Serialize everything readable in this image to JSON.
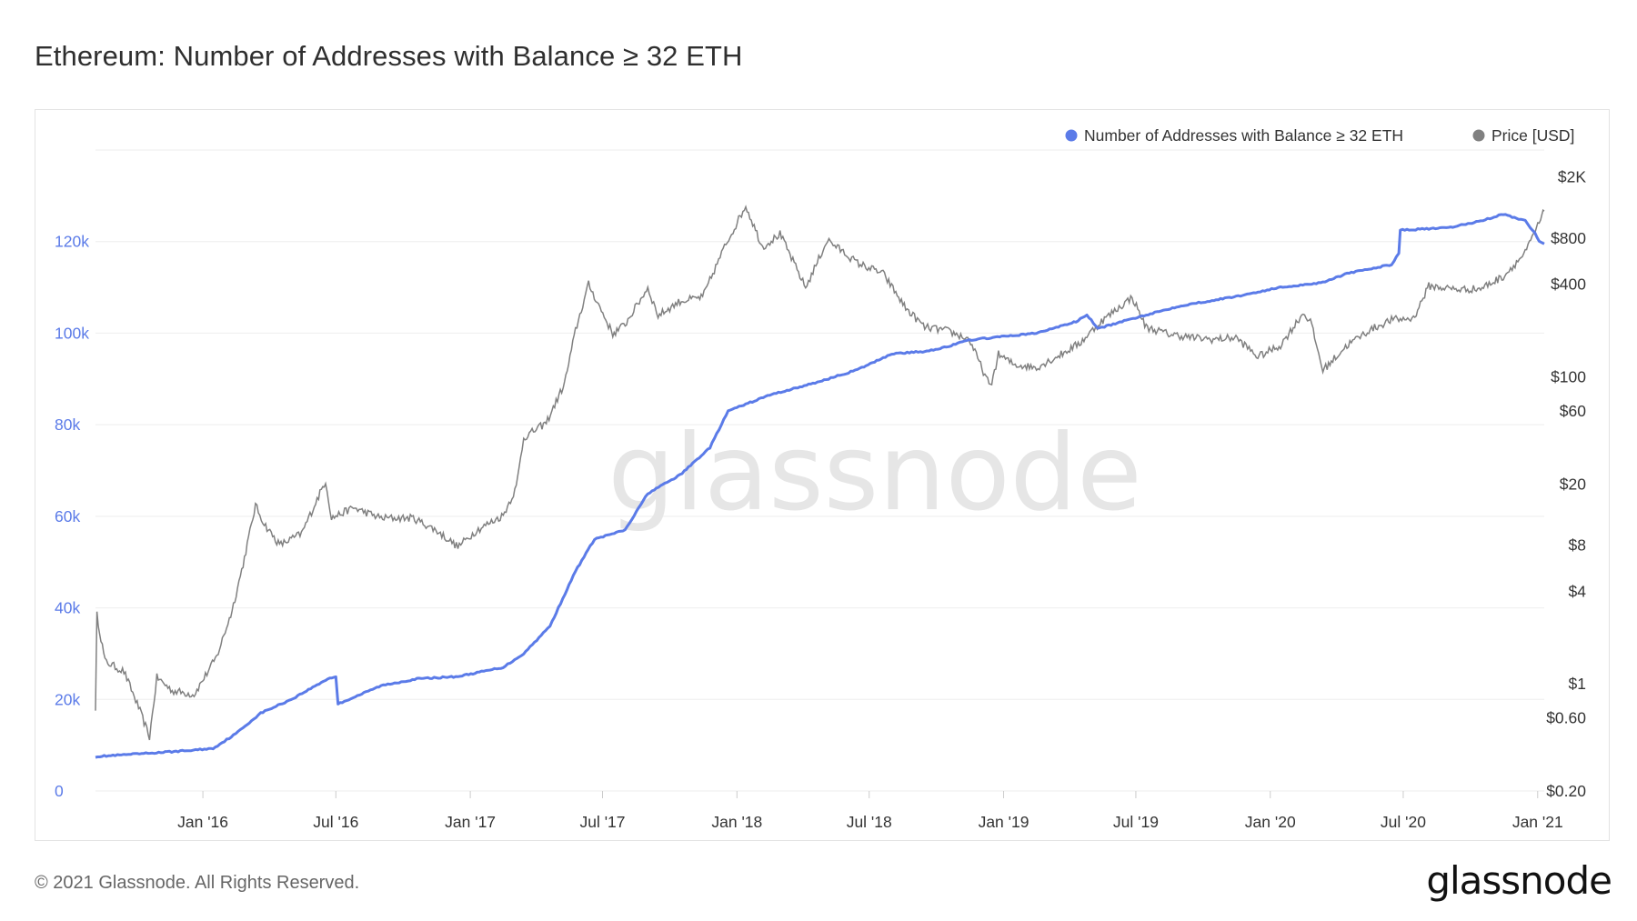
{
  "title": "Ethereum: Number of Addresses with Balance ≥ 32 ETH",
  "footer": {
    "copyright": "© 2021 Glassnode. All Rights Reserved.",
    "brand": "glassnode"
  },
  "watermark": "glassnode",
  "colors": {
    "addresses": "#5b7be8",
    "price": "#808080",
    "grid": "#eeeeee",
    "left_axis_text": "#5b7be8",
    "right_axis_text": "#333333"
  },
  "chart_data": {
    "type": "line",
    "title": "Ethereum: Number of Addresses with Balance ≥ 32 ETH",
    "legend": {
      "placement": "top-right",
      "items": [
        "Number of Addresses with Balance ≥ 32 ETH",
        "Price [USD]"
      ]
    },
    "grid": true,
    "x_ticks": [
      "Jan '16",
      "Jul '16",
      "Jan '17",
      "Jul '17",
      "Jan '18",
      "Jul '18",
      "Jan '19",
      "Jul '19",
      "Jan '20",
      "Jul '20",
      "Jan '21"
    ],
    "x_range": [
      "2015-08-07",
      "2021-01-10"
    ],
    "left_axis": {
      "ticks": [
        "0",
        "20k",
        "40k",
        "60k",
        "80k",
        "100k",
        "120k"
      ],
      "ylim": [
        0,
        140000
      ]
    },
    "right_axis": {
      "scale": "log",
      "ticks": [
        "$0.20",
        "$0.60",
        "$1",
        "$4",
        "$8",
        "$20",
        "$60",
        "$100",
        "$400",
        "$800",
        "$2K"
      ],
      "ylim": [
        0.2,
        3000
      ]
    },
    "series": [
      {
        "name": "Number of Addresses with Balance ≥ 32 ETH",
        "axis": "left",
        "points": [
          [
            "2015-08-07",
            7500
          ],
          [
            "2015-10-15",
            8200
          ],
          [
            "2015-12-10",
            8800
          ],
          [
            "2016-01-15",
            9300
          ],
          [
            "2016-02-15",
            12500
          ],
          [
            "2016-03-20",
            17000
          ],
          [
            "2016-05-01",
            20000
          ],
          [
            "2016-06-20",
            24500
          ],
          [
            "2016-07-01",
            25000
          ],
          [
            "2016-07-04",
            19000
          ],
          [
            "2016-09-01",
            23000
          ],
          [
            "2016-10-20",
            24500
          ],
          [
            "2016-12-15",
            25000
          ],
          [
            "2017-02-15",
            27000
          ],
          [
            "2017-03-15",
            30000
          ],
          [
            "2017-04-20",
            36000
          ],
          [
            "2017-05-25",
            48000
          ],
          [
            "2017-06-20",
            55000
          ],
          [
            "2017-08-01",
            57000
          ],
          [
            "2017-09-01",
            65000
          ],
          [
            "2017-10-15",
            69000
          ],
          [
            "2017-11-25",
            75000
          ],
          [
            "2017-12-20",
            83000
          ],
          [
            "2018-02-15",
            86500
          ],
          [
            "2018-04-15",
            89000
          ],
          [
            "2018-06-15",
            92000
          ],
          [
            "2018-08-01",
            95500
          ],
          [
            "2018-09-15",
            96000
          ],
          [
            "2018-10-15",
            97000
          ],
          [
            "2018-11-15",
            98500
          ],
          [
            "2019-02-15",
            100000
          ],
          [
            "2019-04-10",
            102500
          ],
          [
            "2019-04-25",
            104000
          ],
          [
            "2019-05-10",
            101000
          ],
          [
            "2019-07-15",
            104000
          ],
          [
            "2019-09-01",
            106000
          ],
          [
            "2019-11-15",
            108000
          ],
          [
            "2020-01-15",
            110000
          ],
          [
            "2020-03-10",
            111000
          ],
          [
            "2020-04-15",
            113000
          ],
          [
            "2020-06-15",
            115000
          ],
          [
            "2020-06-25",
            117500
          ],
          [
            "2020-06-27",
            122500
          ],
          [
            "2020-09-01",
            123000
          ],
          [
            "2020-10-15",
            124500
          ],
          [
            "2020-11-15",
            126000
          ],
          [
            "2020-12-15",
            124500
          ],
          [
            "2020-12-28",
            122000
          ],
          [
            "2021-01-03",
            120000
          ],
          [
            "2021-01-10",
            119500
          ]
        ]
      },
      {
        "name": "Price [USD]",
        "axis": "right",
        "points": [
          [
            "2015-08-07",
            0.7
          ],
          [
            "2015-08-09",
            2.8
          ],
          [
            "2015-08-20",
            1.4
          ],
          [
            "2015-09-15",
            1.2
          ],
          [
            "2015-10-05",
            0.7
          ],
          [
            "2015-10-20",
            0.45
          ],
          [
            "2015-10-30",
            1.1
          ],
          [
            "2015-11-20",
            0.9
          ],
          [
            "2015-12-20",
            0.85
          ],
          [
            "2016-01-20",
            1.5
          ],
          [
            "2016-02-10",
            3.0
          ],
          [
            "2016-02-25",
            6.0
          ],
          [
            "2016-03-13",
            14.5
          ],
          [
            "2016-03-25",
            11.0
          ],
          [
            "2016-04-15",
            8.0
          ],
          [
            "2016-05-15",
            9.5
          ],
          [
            "2016-06-17",
            21.0
          ],
          [
            "2016-06-25",
            12.0
          ],
          [
            "2016-07-25",
            14.0
          ],
          [
            "2016-09-01",
            12.0
          ],
          [
            "2016-10-15",
            12.0
          ],
          [
            "2016-11-15",
            10.0
          ],
          [
            "2016-12-15",
            7.8
          ],
          [
            "2017-01-10",
            10.0
          ],
          [
            "2017-02-15",
            12.5
          ],
          [
            "2017-03-05",
            19.0
          ],
          [
            "2017-03-15",
            40.0
          ],
          [
            "2017-04-15",
            50.0
          ],
          [
            "2017-05-10",
            90.0
          ],
          [
            "2017-05-25",
            200.0
          ],
          [
            "2017-06-12",
            400.0
          ],
          [
            "2017-07-15",
            190.0
          ],
          [
            "2017-08-01",
            220.0
          ],
          [
            "2017-09-01",
            380.0
          ],
          [
            "2017-09-15",
            250.0
          ],
          [
            "2017-10-15",
            310.0
          ],
          [
            "2017-11-15",
            330.0
          ],
          [
            "2017-12-15",
            700.0
          ],
          [
            "2018-01-13",
            1300.0
          ],
          [
            "2018-02-05",
            700.0
          ],
          [
            "2018-03-01",
            850.0
          ],
          [
            "2018-04-05",
            380.0
          ],
          [
            "2018-05-05",
            780.0
          ],
          [
            "2018-06-15",
            550.0
          ],
          [
            "2018-07-20",
            470.0
          ],
          [
            "2018-08-20",
            280.0
          ],
          [
            "2018-09-15",
            210.0
          ],
          [
            "2018-10-15",
            200.0
          ],
          [
            "2018-11-15",
            175.0
          ],
          [
            "2018-12-14",
            85.0
          ],
          [
            "2018-12-25",
            140.0
          ],
          [
            "2019-01-15",
            120.0
          ],
          [
            "2019-02-15",
            115.0
          ],
          [
            "2019-03-15",
            135.0
          ],
          [
            "2019-04-15",
            165.0
          ],
          [
            "2019-05-15",
            230.0
          ],
          [
            "2019-06-26",
            330.0
          ],
          [
            "2019-07-15",
            210.0
          ],
          [
            "2019-08-15",
            190.0
          ],
          [
            "2019-09-15",
            180.0
          ],
          [
            "2019-10-15",
            175.0
          ],
          [
            "2019-11-15",
            180.0
          ],
          [
            "2019-12-15",
            135.0
          ],
          [
            "2020-01-15",
            160.0
          ],
          [
            "2020-02-15",
            260.0
          ],
          [
            "2020-02-25",
            230.0
          ],
          [
            "2020-03-13",
            110.0
          ],
          [
            "2020-04-15",
            160.0
          ],
          [
            "2020-05-15",
            200.0
          ],
          [
            "2020-06-15",
            235.0
          ],
          [
            "2020-07-15",
            240.0
          ],
          [
            "2020-08-05",
            390.0
          ],
          [
            "2020-09-15",
            370.0
          ],
          [
            "2020-10-15",
            375.0
          ],
          [
            "2020-11-15",
            450.0
          ],
          [
            "2020-12-15",
            640.0
          ],
          [
            "2021-01-05",
            1050.0
          ],
          [
            "2021-01-10",
            1200.0
          ]
        ]
      }
    ]
  }
}
